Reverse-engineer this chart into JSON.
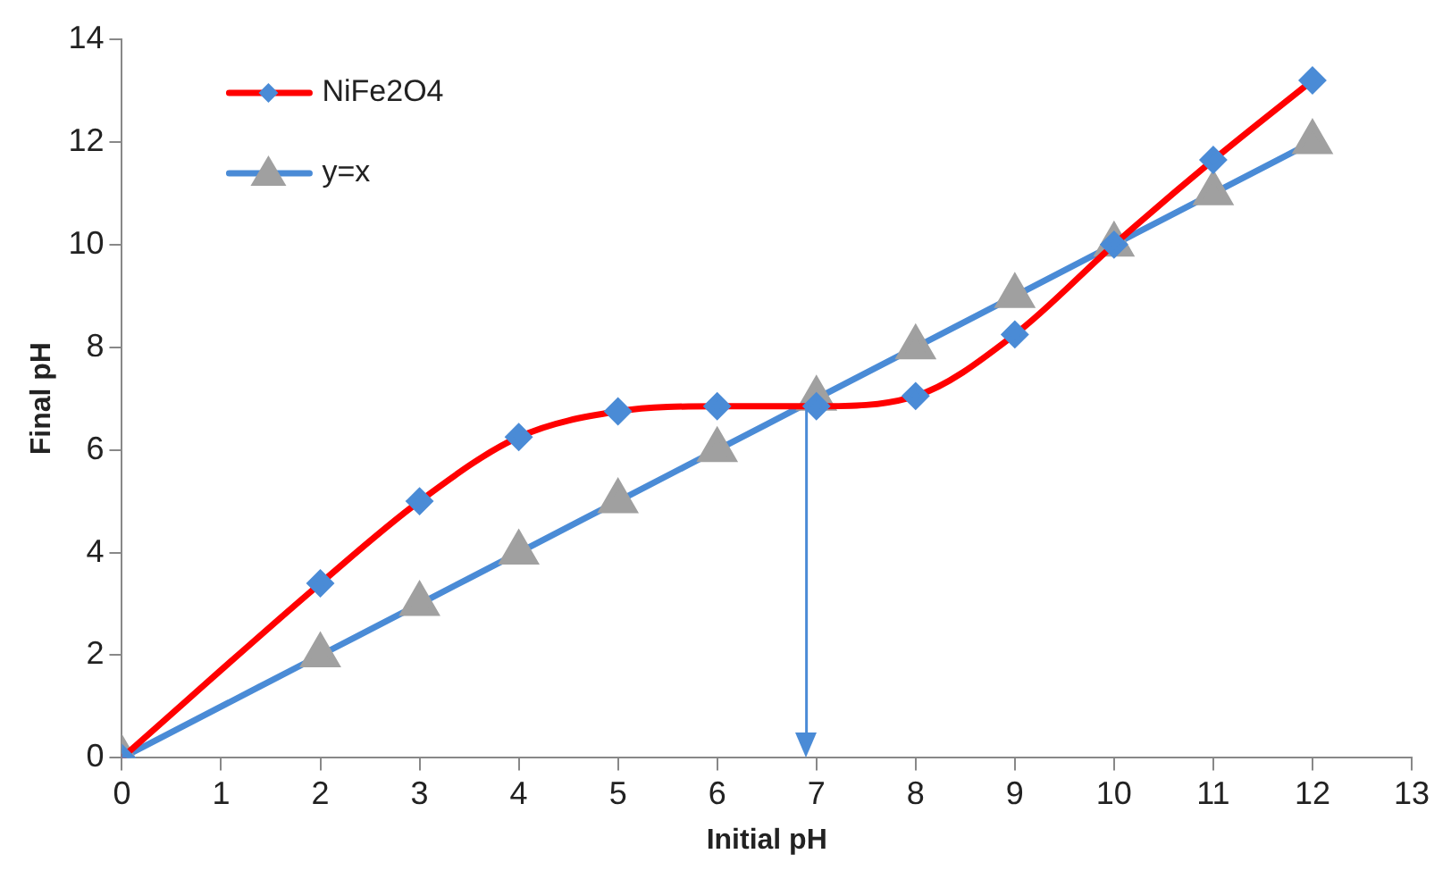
{
  "chart_data": {
    "type": "line",
    "xlabel": "Initial pH",
    "ylabel": "Final pH",
    "xlim": [
      0,
      13
    ],
    "xticks": [
      0,
      1,
      2,
      3,
      4,
      5,
      6,
      7,
      8,
      9,
      10,
      11,
      12,
      13
    ],
    "ylim": [
      0,
      14
    ],
    "yticks": [
      0,
      2,
      4,
      6,
      8,
      10,
      12,
      14
    ],
    "grid": false,
    "legend": "top left",
    "series": [
      {
        "name": "NiFe2O4",
        "color": "#ff0000",
        "marker": "diamond",
        "colors": [
          "#4a8bd6",
          "#4a8bd6",
          "#4a8bd6",
          "#4a8bd6",
          "#4a8bd6",
          "#4a8bd6",
          "#4a8bd6",
          "#4a8bd6",
          "#4a8bd6",
          "#4a8bd6",
          "#4a8bd6",
          "#4a8bd6"
        ],
        "x": [
          0,
          2,
          3,
          4,
          5,
          6,
          7,
          8,
          9,
          10,
          11,
          12
        ],
        "values": [
          0,
          3.4,
          5.0,
          6.25,
          6.75,
          6.85,
          6.85,
          7.05,
          8.25,
          10.0,
          11.65,
          13.2
        ]
      },
      {
        "name": "y=x",
        "color": "#4a8bd6",
        "marker": "triangle",
        "colors": [
          "#a0a0a0",
          "#a0a0a0",
          "#a0a0a0",
          "#a0a0a0",
          "#a0a0a0",
          "#a0a0a0",
          "#a0a0a0",
          "#a0a0a0",
          "#a0a0a0",
          "#a0a0a0",
          "#a0a0a0",
          "#a0a0a0"
        ],
        "x": [
          0,
          2,
          3,
          4,
          5,
          6,
          7,
          8,
          9,
          10,
          11,
          12
        ],
        "values": [
          0,
          2,
          3,
          4,
          5,
          6,
          7,
          8,
          9,
          10,
          11,
          12
        ]
      }
    ],
    "ref_lines": [
      {
        "axis": "x",
        "value": 6.9,
        "color": "#4a8bd6"
      }
    ]
  }
}
